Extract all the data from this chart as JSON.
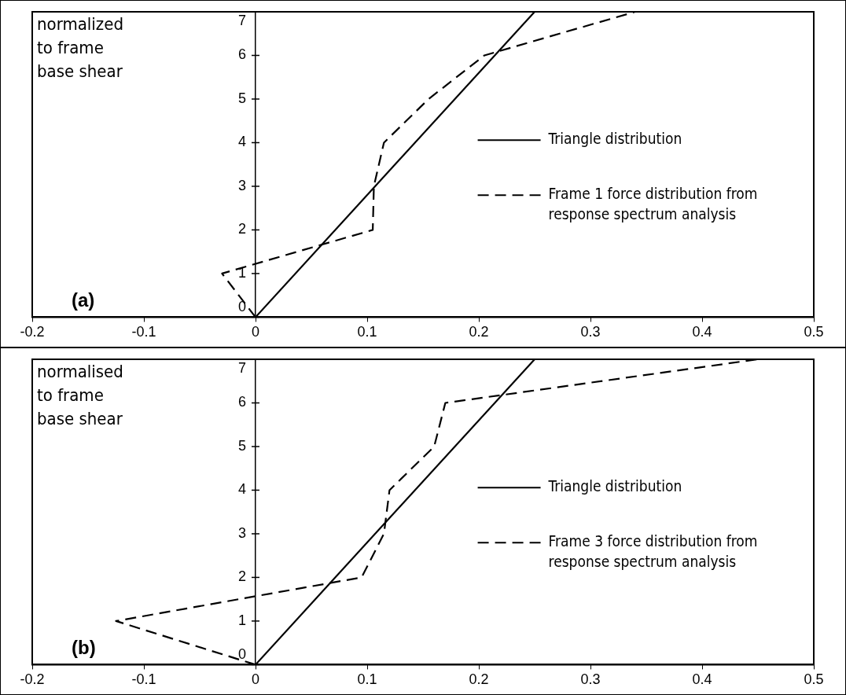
{
  "chart_data": [
    {
      "type": "line",
      "ylabel": "normalized to frame base shear",
      "annotations": [
        "(a)"
      ],
      "xlim": [
        -0.2,
        0.5
      ],
      "ylim": [
        0,
        7
      ],
      "xticks": [
        -0.2,
        -0.1,
        0,
        0.1,
        0.2,
        0.3,
        0.4,
        0.5
      ],
      "yticks": [
        0,
        1,
        2,
        3,
        4,
        5,
        6,
        7
      ],
      "grid": false,
      "legend": "right",
      "marker": "none",
      "series": [
        {
          "name": "Triangle distribution",
          "color": "#000000",
          "line_style": "solid",
          "x": [
            0,
            0.25
          ],
          "values": [
            0,
            7
          ]
        },
        {
          "name": "Frame 1 force distribution from response spectrum analysis",
          "color": "#000000",
          "line_style": "dashed",
          "x": [
            0,
            -0.03,
            0.105,
            0.106,
            0.115,
            0.155,
            0.205,
            0.34
          ],
          "values": [
            0,
            1,
            2,
            3,
            4,
            5,
            6,
            7
          ]
        }
      ]
    },
    {
      "type": "line",
      "ylabel": "normalised to frame base shear",
      "annotations": [
        "(b)"
      ],
      "xlim": [
        -0.2,
        0.5
      ],
      "ylim": [
        0,
        7
      ],
      "xticks": [
        -0.2,
        -0.1,
        0,
        0.1,
        0.2,
        0.3,
        0.4,
        0.5
      ],
      "yticks": [
        0,
        1,
        2,
        3,
        4,
        5,
        6,
        7
      ],
      "grid": false,
      "legend": "right",
      "marker": "none",
      "series": [
        {
          "name": "Triangle distribution",
          "color": "#000000",
          "line_style": "solid",
          "x": [
            0,
            0.25
          ],
          "values": [
            0,
            7
          ]
        },
        {
          "name": "Frame 3 force distribution from response spectrum analysis",
          "color": "#000000",
          "line_style": "dashed",
          "x": [
            0,
            -0.125,
            0.095,
            0.115,
            0.12,
            0.16,
            0.17,
            0.45
          ],
          "values": [
            0,
            1,
            2,
            3,
            4,
            5,
            6,
            7
          ]
        }
      ]
    }
  ]
}
